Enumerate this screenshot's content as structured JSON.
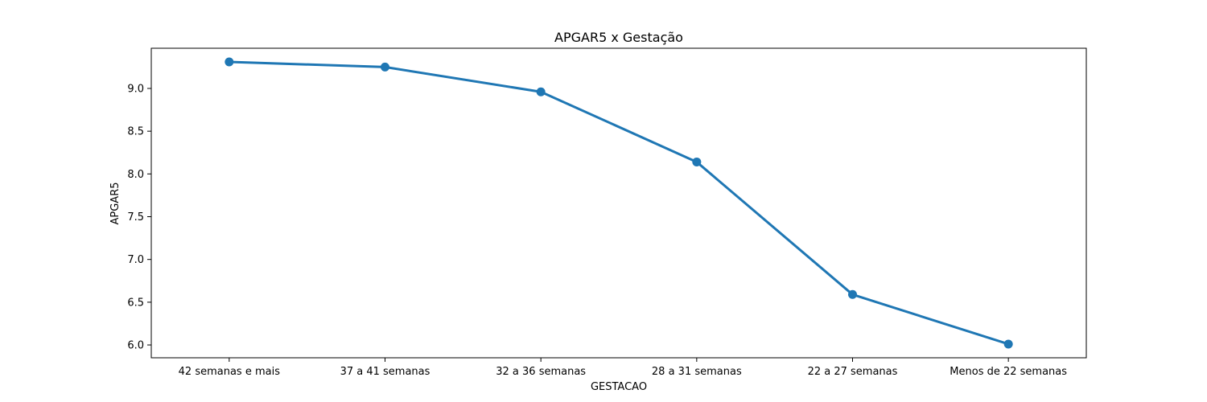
{
  "chart_data": {
    "type": "line",
    "title": "APGAR5 x Gestação",
    "xlabel": "GESTACAO",
    "ylabel": "APGAR5",
    "categories": [
      "42 semanas e mais",
      "37 a 41 semanas",
      "32 a 36 semanas",
      "28 a 31 semanas",
      "22 a 27 semanas",
      "Menos de 22 semanas"
    ],
    "series": [
      {
        "values": [
          9.31,
          9.25,
          8.96,
          8.14,
          6.59,
          6.01
        ],
        "color": "#1f77b4"
      }
    ],
    "ylim": [
      5.85,
      9.47
    ],
    "yticks": [
      6.0,
      6.5,
      7.0,
      7.5,
      8.0,
      8.5,
      9.0
    ],
    "yticks_labels": [
      "6.0",
      "6.5",
      "7.0",
      "7.5",
      "8.0",
      "8.5",
      "9.0"
    ],
    "grid": false,
    "legend": "none"
  }
}
